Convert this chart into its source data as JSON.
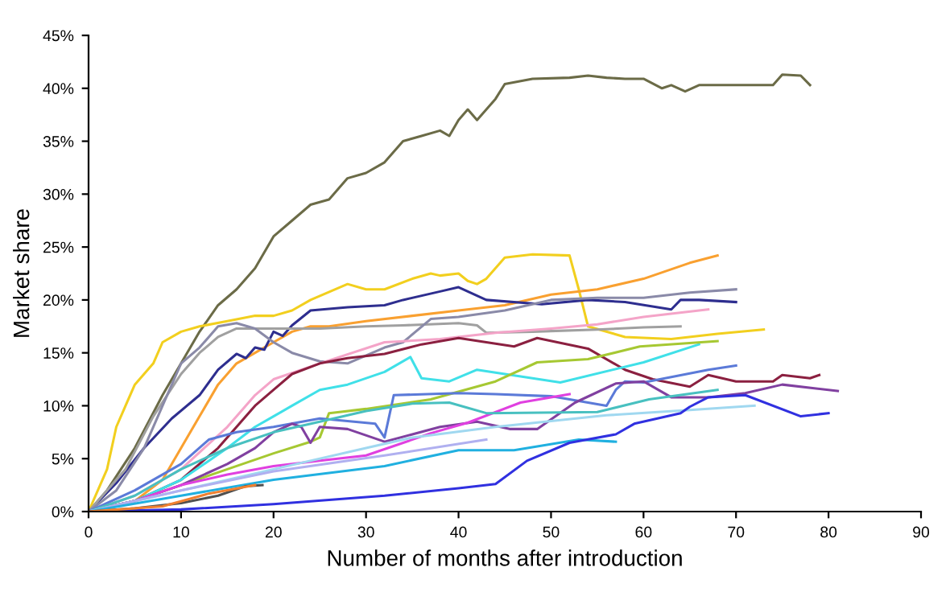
{
  "chart_data": {
    "type": "line",
    "xlabel": "Number of months after introduction",
    "ylabel": "Market share",
    "xlim": [
      0,
      90
    ],
    "xticks": [
      0,
      10,
      20,
      30,
      40,
      50,
      60,
      70,
      80,
      90
    ],
    "ylim": [
      0,
      45
    ],
    "yticks": [
      {
        "value": 0,
        "label": "0%"
      },
      {
        "value": 5,
        "label": "5%"
      },
      {
        "value": 10,
        "label": "10%"
      },
      {
        "value": 15,
        "label": "15%"
      },
      {
        "value": 20,
        "label": "20%"
      },
      {
        "value": 25,
        "label": "25%"
      },
      {
        "value": 30,
        "label": "30%"
      },
      {
        "value": 35,
        "label": "35%"
      },
      {
        "value": 40,
        "label": "40%"
      },
      {
        "value": 45,
        "label": "45%"
      }
    ],
    "grid": false,
    "marker": "none",
    "line_style": "solid",
    "series": [
      {
        "color": "#6b6b47",
        "x": [
          0,
          2,
          5,
          8,
          10,
          12,
          14,
          16,
          18,
          20,
          22,
          24,
          26,
          28,
          30,
          32,
          34,
          36,
          38,
          39,
          40,
          41,
          42,
          44,
          45,
          48,
          52,
          54,
          56,
          58,
          60,
          62,
          63,
          64.5,
          66,
          70,
          74,
          75,
          77,
          78
        ],
        "values": [
          0,
          2,
          6,
          11,
          14,
          17,
          19.5,
          21,
          23,
          26,
          27.5,
          29,
          29.5,
          31.5,
          32,
          33,
          35,
          35.5,
          36,
          35.5,
          37,
          38,
          37,
          39,
          40.4,
          40.9,
          41,
          41.2,
          41,
          40.9,
          40.9,
          40,
          40.3,
          39.7,
          40.3,
          40.3,
          40.3,
          41.3,
          41.2,
          40.3
        ]
      },
      {
        "color": "#f2cf1e",
        "x": [
          0,
          2,
          3,
          4,
          5,
          7,
          8,
          10,
          12,
          15,
          18,
          20,
          22,
          24,
          28,
          30,
          32,
          35,
          37,
          38,
          40,
          41,
          42,
          43,
          45,
          48,
          52,
          53,
          54,
          58,
          63,
          68,
          73
        ],
        "values": [
          0,
          4,
          8,
          10,
          12,
          14,
          16,
          17,
          17.5,
          18,
          18.5,
          18.5,
          19,
          20,
          21.5,
          21,
          21,
          22,
          22.5,
          22.3,
          22.5,
          21.8,
          21.5,
          22,
          24,
          24.3,
          24.2,
          21,
          17.5,
          16.5,
          16.3,
          16.8,
          17.2
        ]
      },
      {
        "color": "#f9a030",
        "x": [
          0,
          5,
          8,
          10,
          12,
          14,
          16,
          18,
          20,
          22,
          24,
          26,
          30,
          35,
          40,
          45,
          50,
          55,
          60,
          65,
          68
        ],
        "values": [
          0,
          1,
          3,
          6,
          9,
          12,
          14,
          15,
          16,
          17,
          17.5,
          17.5,
          18,
          18.5,
          19,
          19.5,
          20.5,
          21,
          22,
          23.5,
          24.2
        ]
      },
      {
        "color": "#2e2e8f",
        "x": [
          0,
          3,
          6,
          9,
          12,
          14,
          16,
          17,
          18,
          19,
          20,
          21,
          22,
          24,
          28,
          32,
          34,
          38,
          40,
          43,
          49,
          54,
          58,
          63,
          64,
          66,
          70
        ],
        "values": [
          0,
          2.7,
          6,
          8.8,
          11,
          13.4,
          14.9,
          14.5,
          15.5,
          15.3,
          17,
          16.6,
          17.6,
          19,
          19.3,
          19.5,
          20,
          20.8,
          21.2,
          20,
          19.6,
          20,
          19.8,
          19.1,
          20,
          20,
          19.8
        ]
      },
      {
        "color": "#a0a0a0",
        "x": [
          0,
          4,
          7,
          10,
          12,
          14,
          16,
          20,
          25,
          30,
          34,
          40,
          42,
          43,
          48,
          55,
          60,
          64
        ],
        "values": [
          0,
          4,
          9,
          13,
          15,
          16.5,
          17.3,
          17.3,
          17.3,
          17.5,
          17.6,
          17.8,
          17.6,
          16.9,
          17,
          17.2,
          17.4,
          17.5
        ]
      },
      {
        "color": "#8a8aa8",
        "x": [
          0,
          3,
          6,
          8,
          10,
          12,
          14,
          16,
          18,
          20,
          22,
          25,
          28,
          32,
          34,
          37,
          40,
          45,
          50,
          55,
          60,
          65,
          70
        ],
        "values": [
          0,
          2,
          6,
          10,
          14,
          15.5,
          17.5,
          17.8,
          17.3,
          16,
          15,
          14.2,
          14,
          15.5,
          16,
          18.2,
          18.4,
          19,
          20,
          20.2,
          20.2,
          20.7,
          21
        ]
      },
      {
        "color": "#f4a4c8",
        "x": [
          0,
          5,
          10,
          15,
          18,
          20,
          25,
          32,
          38,
          44,
          50,
          55,
          60,
          67
        ],
        "values": [
          0,
          1.5,
          4,
          8,
          11,
          12.5,
          14,
          16,
          16.3,
          16.9,
          17.3,
          17.7,
          18.4,
          19.1
        ]
      },
      {
        "color": "#8b2040",
        "x": [
          0,
          5,
          10,
          14,
          16,
          18,
          20,
          22,
          25,
          28,
          32,
          36,
          40,
          46,
          48.5,
          54,
          58,
          61,
          65,
          67,
          70,
          74,
          75,
          78,
          79
        ],
        "values": [
          0,
          1,
          3,
          6,
          8,
          10,
          11.5,
          13,
          14,
          14.5,
          14.9,
          15.8,
          16.4,
          15.6,
          16.4,
          15.4,
          13.4,
          12.5,
          11.8,
          12.9,
          12.3,
          12.3,
          12.9,
          12.6,
          12.9
        ]
      },
      {
        "color": "#40e0e8",
        "x": [
          0,
          5,
          10,
          15,
          18,
          20,
          22,
          25,
          28,
          32,
          34.8,
          36,
          39,
          42,
          51,
          60,
          66
        ],
        "values": [
          0,
          1,
          3,
          6,
          8,
          9,
          10,
          11.5,
          12,
          13.2,
          14.6,
          12.6,
          12.3,
          13.4,
          12.2,
          14.1,
          15.8
        ]
      },
      {
        "color": "#a6c832",
        "x": [
          0,
          5,
          10,
          15,
          20,
          24,
          25,
          26,
          30,
          37,
          44,
          48.5,
          54,
          59.6,
          68
        ],
        "values": [
          0,
          1,
          2.5,
          4,
          5.5,
          6.6,
          7,
          9.3,
          9.7,
          10.6,
          12.3,
          14.1,
          14.4,
          15.6,
          16.1
        ]
      },
      {
        "color": "#5b7ad8",
        "x": [
          0,
          5,
          10,
          13,
          16,
          20,
          25,
          31,
          32,
          33,
          40,
          44,
          50,
          56,
          57,
          58,
          60,
          67,
          70
        ],
        "values": [
          0,
          2,
          4.5,
          6.8,
          7.5,
          8,
          8.8,
          8.3,
          7,
          11,
          11.2,
          11.1,
          10.9,
          10,
          11.5,
          12.3,
          12.2,
          13.4,
          13.8
        ]
      },
      {
        "color": "#8040a0",
        "x": [
          0,
          5,
          10,
          15,
          18,
          20,
          22,
          23,
          24,
          25,
          28,
          32,
          38,
          42,
          45.6,
          48.5,
          52.6,
          57,
          60,
          63,
          67,
          71,
          75,
          81
        ],
        "values": [
          0,
          1,
          2.5,
          4.5,
          6,
          7.5,
          8.3,
          8,
          6.5,
          8,
          7.8,
          6.6,
          8,
          8.5,
          7.8,
          7.8,
          10.3,
          12.1,
          12.3,
          10.8,
          10.8,
          11.2,
          12,
          11.4
        ]
      },
      {
        "color": "#e040e0",
        "x": [
          0,
          5,
          10,
          15,
          20,
          25,
          30,
          33,
          37,
          41,
          46.7,
          52
        ],
        "values": [
          0,
          1,
          2.5,
          3.5,
          4.3,
          4.8,
          5.3,
          6.2,
          7.4,
          8.4,
          10.3,
          11.1
        ]
      },
      {
        "color": "#48c0c0",
        "x": [
          0,
          5,
          10,
          15,
          20,
          25,
          30,
          35,
          39,
          43,
          55,
          60.6,
          68
        ],
        "values": [
          0,
          1.5,
          4,
          6,
          7.5,
          8.5,
          9.5,
          10.2,
          10.3,
          9.3,
          9.4,
          10.6,
          11.5
        ]
      },
      {
        "color": "#a0d8f0",
        "x": [
          0,
          10,
          20,
          30,
          35,
          44,
          56,
          65,
          72
        ],
        "values": [
          0,
          2,
          4,
          6,
          7,
          8,
          9.1,
          9.6,
          10
        ]
      },
      {
        "color": "#b0b0f0",
        "x": [
          0,
          10,
          20,
          32,
          43
        ],
        "values": [
          0,
          2,
          3.8,
          5.3,
          6.8
        ]
      },
      {
        "color": "#20b0e0",
        "x": [
          0,
          10,
          20,
          32,
          40,
          46,
          53,
          57
        ],
        "values": [
          0,
          1.5,
          3,
          4.3,
          5.8,
          5.8,
          6.8,
          6.6
        ]
      },
      {
        "color": "#3030e0",
        "x": [
          0,
          10,
          20,
          32,
          40,
          44,
          47.4,
          52,
          57,
          59,
          64,
          65,
          67,
          71,
          77,
          80
        ],
        "values": [
          0,
          0.2,
          0.7,
          1.5,
          2.2,
          2.6,
          4.8,
          6.5,
          7.3,
          8.3,
          9.3,
          9.9,
          10.8,
          11,
          9,
          9.3
        ]
      },
      {
        "color": "#505050",
        "x": [
          0,
          5,
          10,
          14,
          17,
          18.8
        ],
        "values": [
          0,
          0.3,
          0.8,
          1.5,
          2.4,
          2.5
        ]
      },
      {
        "color": "#f08030",
        "x": [
          0,
          8,
          13,
          18
        ],
        "values": [
          0,
          0.5,
          1.7,
          2.5
        ]
      }
    ]
  }
}
